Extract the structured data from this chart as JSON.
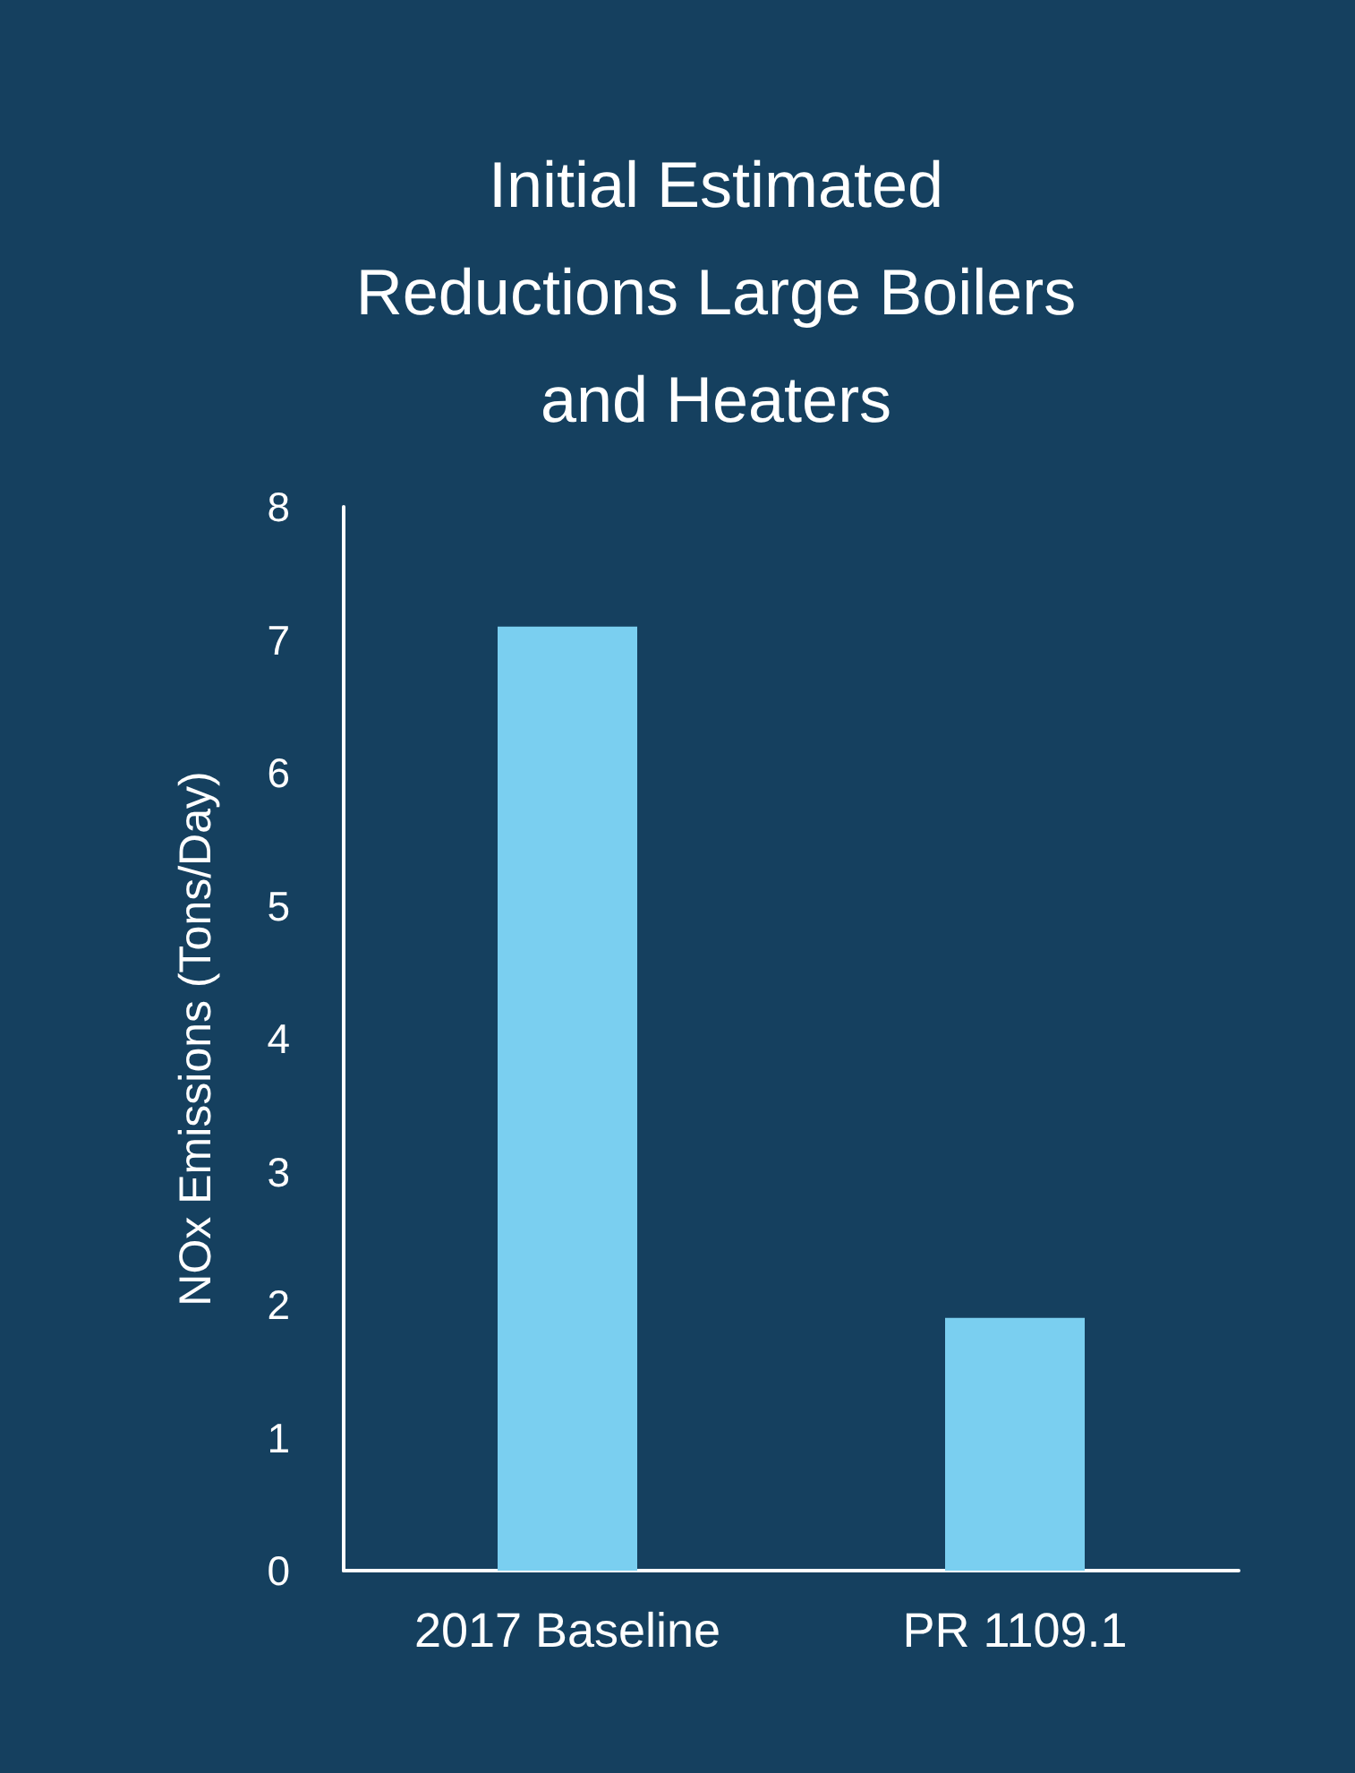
{
  "chart_data": {
    "type": "bar",
    "title": "Initial Estimated\nReductions Large Boilers\nand Heaters",
    "ylabel": "NOx Emissions (Tons/Day)",
    "categories": [
      "2017 Baseline",
      "PR 1109.1"
    ],
    "values": [
      7.1,
      1.9
    ],
    "color": "#7acff0",
    "ylim": [
      0,
      8
    ],
    "yticks": [
      0,
      1,
      2,
      3,
      4,
      5,
      6,
      7,
      8
    ],
    "grid": false
  }
}
